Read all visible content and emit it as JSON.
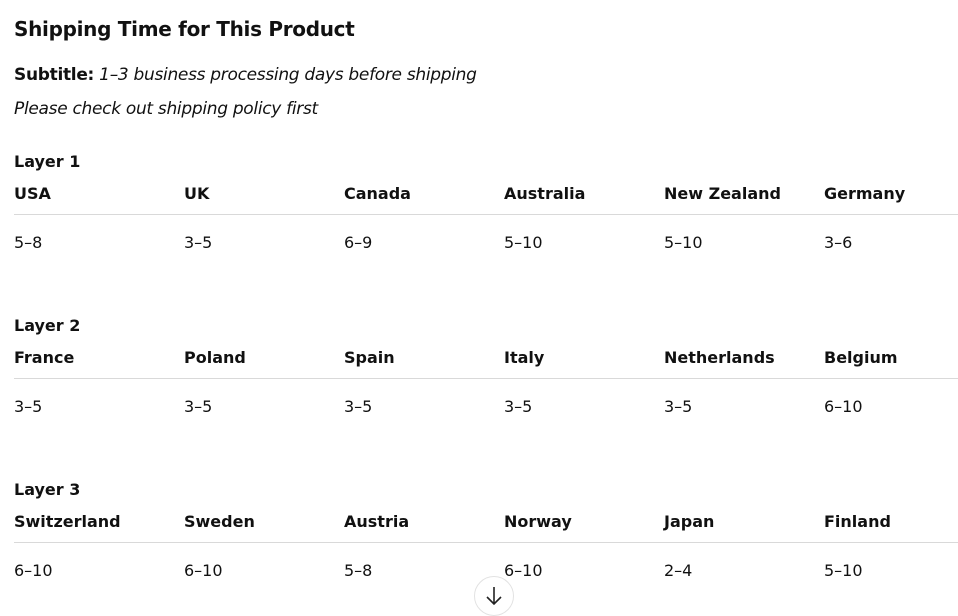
{
  "title": "Shipping Time for This Product",
  "subtitle_label": "Subtitle:",
  "subtitle_text": "1–3 business processing days before shipping",
  "note": "Please check out shipping policy first",
  "layers": [
    {
      "title": "Layer 1",
      "countries": [
        "USA",
        "UK",
        "Canada",
        "Australia",
        "New Zealand",
        "Germany"
      ],
      "times": [
        "5–8",
        "3–5",
        "6–9",
        "5–10",
        "5–10",
        "3–6"
      ]
    },
    {
      "title": "Layer 2",
      "countries": [
        "France",
        "Poland",
        "Spain",
        "Italy",
        "Netherlands",
        "Belgium"
      ],
      "times": [
        "3–5",
        "3–5",
        "3–5",
        "3–5",
        "3–5",
        "6–10"
      ]
    },
    {
      "title": "Layer 3",
      "countries": [
        "Switzerland",
        "Sweden",
        "Austria",
        "Norway",
        "Japan",
        "Finland"
      ],
      "times": [
        "6–10",
        "6–10",
        "5–8",
        "6–10",
        "2–4",
        "5–10"
      ]
    }
  ],
  "scroll_button_icon": "arrow-down-icon"
}
